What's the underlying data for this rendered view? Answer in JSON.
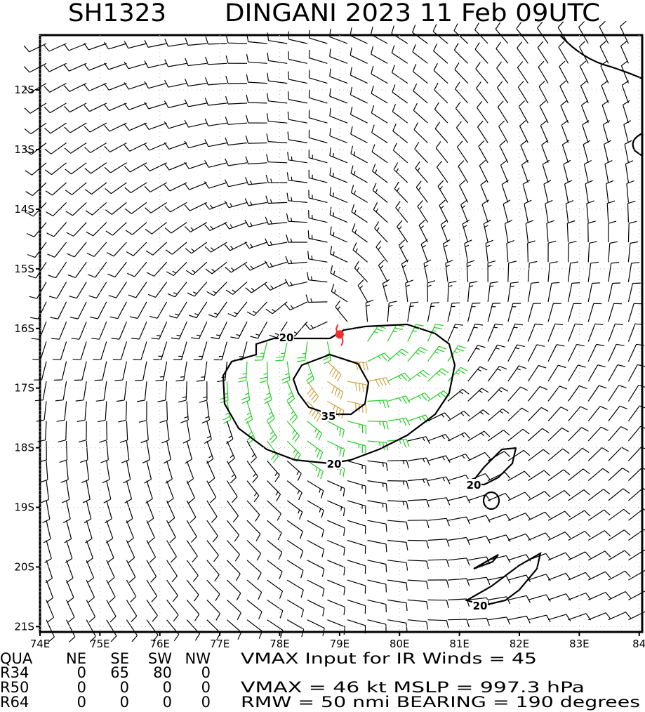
{
  "header": {
    "storm_id": "SH1323",
    "title": "DINGANI 2023 11 Feb 09UTC"
  },
  "map": {
    "lonlim": [
      74,
      84.05
    ],
    "latlim": [
      11.08,
      21.09
    ],
    "lon_ticks": [
      {
        "value": 74,
        "label": "74E"
      },
      {
        "value": 75,
        "label": "75E"
      },
      {
        "value": 76,
        "label": "76E"
      },
      {
        "value": 77,
        "label": "77E"
      },
      {
        "value": 78,
        "label": "78E"
      },
      {
        "value": 79,
        "label": "79E"
      },
      {
        "value": 80,
        "label": "80E"
      },
      {
        "value": 81,
        "label": "81E"
      },
      {
        "value": 82,
        "label": "82E"
      },
      {
        "value": 83,
        "label": "83E"
      },
      {
        "value": 84,
        "label": "84"
      }
    ],
    "lat_ticks": [
      {
        "value": 12,
        "label": "12S"
      },
      {
        "value": 13,
        "label": "13S"
      },
      {
        "value": 14,
        "label": "14S"
      },
      {
        "value": 15,
        "label": "15S"
      },
      {
        "value": 16,
        "label": "16S"
      },
      {
        "value": 17,
        "label": "17S"
      },
      {
        "value": 18,
        "label": "18S"
      },
      {
        "value": 19,
        "label": "19S"
      },
      {
        "value": 20,
        "label": "20S"
      },
      {
        "value": 21,
        "label": "21S"
      }
    ],
    "contour_labels": [
      "20",
      "35",
      "20",
      "20",
      "20"
    ],
    "storm_center": {
      "lon": 79.0,
      "lat": 16.1
    }
  },
  "table": {
    "header": [
      "QUA",
      "NE",
      "SE",
      "SW",
      "NW"
    ],
    "rows": [
      [
        "R34",
        "0",
        "65",
        "80",
        "0"
      ],
      [
        "R50",
        "0",
        "0",
        "0",
        "0"
      ],
      [
        "R64",
        "0",
        "0",
        "0",
        "0"
      ]
    ]
  },
  "info": {
    "line1": "VMAX Input for IR Winds =   45",
    "line2": "VMAX =   46 kt MSLP =  997.3 hPa",
    "line3": "RMW  =  50 nmi BEARING =  190 degrees"
  }
}
